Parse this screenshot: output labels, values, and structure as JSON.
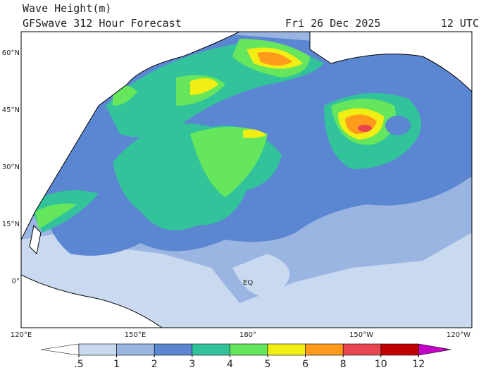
{
  "header": {
    "title": "Wave Height(m)",
    "subtitle": "GFSwave 312 Hour Forecast",
    "date": "Fri 26 Dec 2025",
    "time": "12 UTC"
  },
  "map": {
    "lat_labels": [
      "60°N",
      "45°N",
      "30°N",
      "15°N",
      "0°"
    ],
    "lon_labels": [
      "120°E",
      "150°E",
      "180°",
      "150°W",
      "120°W"
    ],
    "equator_label": "EQ"
  },
  "colorbar": {
    "ticks": [
      {
        "value": 0.5,
        "label": ".5"
      },
      1,
      2,
      3,
      4,
      5,
      6,
      8,
      10,
      12
    ],
    "colors": [
      "#ffffff",
      "#c9d9f0",
      "#9bb5e2",
      "#5b86d1",
      "#33c39a",
      "#66e65c",
      "#f2ee14",
      "#ff9a1a",
      "#e8464f",
      "#c00000",
      "#c400c4"
    ]
  }
}
